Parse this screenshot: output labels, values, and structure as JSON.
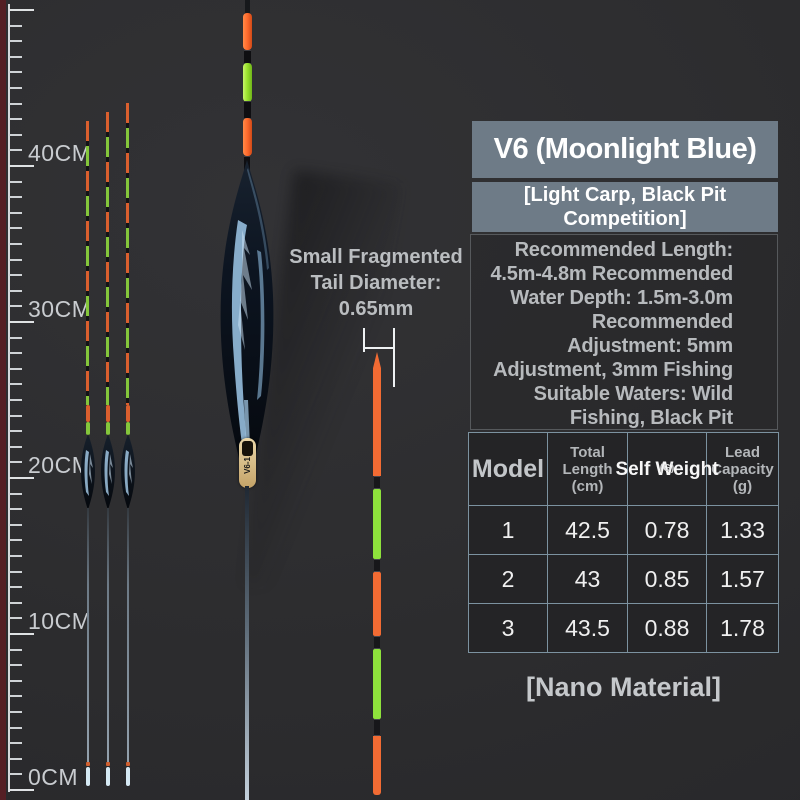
{
  "ruler": {
    "labels": [
      "40CM",
      "30CM",
      "20CM",
      "10CM",
      "0CM"
    ]
  },
  "annotation": {
    "line1": "Small Fragmented",
    "line2": "Tail Diameter:",
    "line3": "0.65mm"
  },
  "big_float": {
    "label": "V6-1"
  },
  "panel": {
    "title": "V6 (Moonlight Blue)",
    "subtitle": "[Light Carp, Black Pit Competition]",
    "description_lines": [
      "Recommended Length:",
      "4.5m-4.8m Recommended",
      "Water Depth: 1.5m-3.0m",
      "Recommended",
      "Adjustment: 5mm",
      "Adjustment, 3mm Fishing",
      "Suitable Waters: Wild",
      "Fishing, Black Pit"
    ],
    "footer": "[Nano Material]"
  },
  "table": {
    "headers": {
      "model": "Model",
      "length": "Total Length (cm)",
      "weight": "Self Weight",
      "weight_unit": "(G)",
      "capacity": "Lead Capacity (g)"
    },
    "rows": [
      [
        "1",
        "42.5",
        "0.78",
        "1.33"
      ],
      [
        "2",
        "43",
        "0.85",
        "1.57"
      ],
      [
        "3",
        "43.5",
        "0.88",
        "1.78"
      ]
    ]
  },
  "colors": {
    "panel_header_bg": "#6e7b87",
    "table_border": "#7c92a0",
    "tail_orange": "#da5f2e",
    "tail_green": "#84c63b",
    "big_orange": "#ff6c2e",
    "big_green": "#9ce32e",
    "thin_orange": "#f26b33",
    "thin_green": "#8ee23c",
    "gold_label": "#d9c192"
  }
}
